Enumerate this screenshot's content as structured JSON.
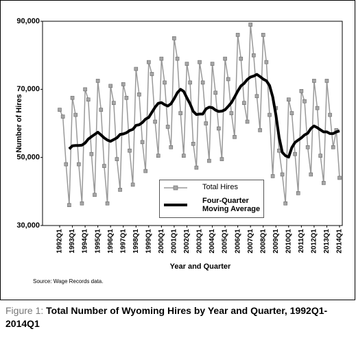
{
  "chart_data": {
    "type": "line",
    "figure_label": "Figure 1:",
    "title": "Total Number of Wyoming Hires by Year and Quarter, 1992Q1-2014Q1",
    "y_axis_label": "Number of Hires",
    "x_axis_label": "Year and Quarter",
    "source": "Source: Wage Records data.",
    "categories": [
      "1992Q1",
      null,
      null,
      null,
      "1993Q1",
      null,
      null,
      null,
      "1994Q1",
      null,
      null,
      null,
      "1995Q1",
      null,
      null,
      null,
      "1996Q1",
      null,
      null,
      null,
      "1997Q1",
      null,
      null,
      null,
      "1998Q1",
      null,
      null,
      null,
      "1999Q1",
      null,
      null,
      null,
      "2000Q1",
      null,
      null,
      null,
      "2001Q1",
      null,
      null,
      null,
      "2002Q1",
      null,
      null,
      null,
      "2003Q1",
      null,
      null,
      null,
      "2004Q1",
      null,
      null,
      null,
      "2005Q1",
      null,
      null,
      null,
      "2006Q1",
      null,
      null,
      null,
      "2007Q1",
      null,
      null,
      null,
      "2008Q1",
      null,
      null,
      null,
      "2009Q1",
      null,
      null,
      null,
      "2010Q1",
      null,
      null,
      null,
      "2011Q1",
      null,
      null,
      null,
      "2012Q1",
      null,
      null,
      null,
      "2013Q1",
      null,
      null,
      null,
      "2014Q1"
    ],
    "series": [
      {
        "name": "Total Hires",
        "color": "#999999",
        "marker_color": "#a6a6a6",
        "values": [
          64000,
          62000,
          48000,
          36000,
          67500,
          62500,
          48000,
          36500,
          70000,
          67000,
          51000,
          39000,
          72500,
          64000,
          47500,
          36500,
          71000,
          66000,
          49500,
          40500,
          71500,
          67500,
          52000,
          42000,
          76000,
          68500,
          54500,
          46000,
          78000,
          74500,
          60500,
          50500,
          79000,
          72000,
          59000,
          53000,
          85000,
          79000,
          63000,
          50500,
          77500,
          72000,
          54000,
          47000,
          78000,
          72000,
          60000,
          49000,
          77500,
          69000,
          58500,
          49500,
          79000,
          73000,
          63000,
          56000,
          86000,
          79000,
          66000,
          60500,
          89000,
          80000,
          68000,
          58000,
          86000,
          78000,
          62500,
          44500,
          64500,
          52000,
          45000,
          36500,
          67000,
          63000,
          51000,
          39500,
          69500,
          66500,
          53000,
          45000,
          72500,
          64500,
          50500,
          42500,
          72500,
          62500,
          53000,
          58000,
          44000
        ]
      },
      {
        "name": "Four-Quarter Moving Average",
        "color": "#000000",
        "values": [
          null,
          null,
          null,
          52500,
          53400,
          53500,
          53500,
          53600,
          54250,
          55400,
          56100,
          56750,
          57400,
          56600,
          55750,
          55100,
          54750,
          55250,
          55750,
          56750,
          56900,
          57250,
          57900,
          58250,
          59400,
          59600,
          60250,
          61250,
          61750,
          63250,
          64750,
          65900,
          66100,
          65500,
          65100,
          65750,
          67250,
          69000,
          70000,
          69400,
          67500,
          65750,
          63500,
          62600,
          62750,
          62750,
          64250,
          64750,
          64600,
          63900,
          63500,
          63600,
          64000,
          65000,
          66100,
          67750,
          69500,
          71000,
          71750,
          72900,
          73600,
          73900,
          74400,
          73750,
          73000,
          72500,
          71100,
          67750,
          62400,
          55900,
          51500,
          50500,
          50100,
          52900,
          54400,
          55100,
          55750,
          56600,
          57100,
          58500,
          59250,
          58750,
          58100,
          57500,
          57500,
          57000,
          57000,
          57500,
          57800
        ]
      }
    ],
    "ylim": [
      30000,
      90000
    ],
    "yticks": [
      {
        "value": 30000,
        "label": "30,000"
      },
      {
        "value": 50000,
        "label": "50,000"
      },
      {
        "value": 70000,
        "label": "70,000"
      },
      {
        "value": 90000,
        "label": "90,000"
      }
    ],
    "grid": false
  }
}
